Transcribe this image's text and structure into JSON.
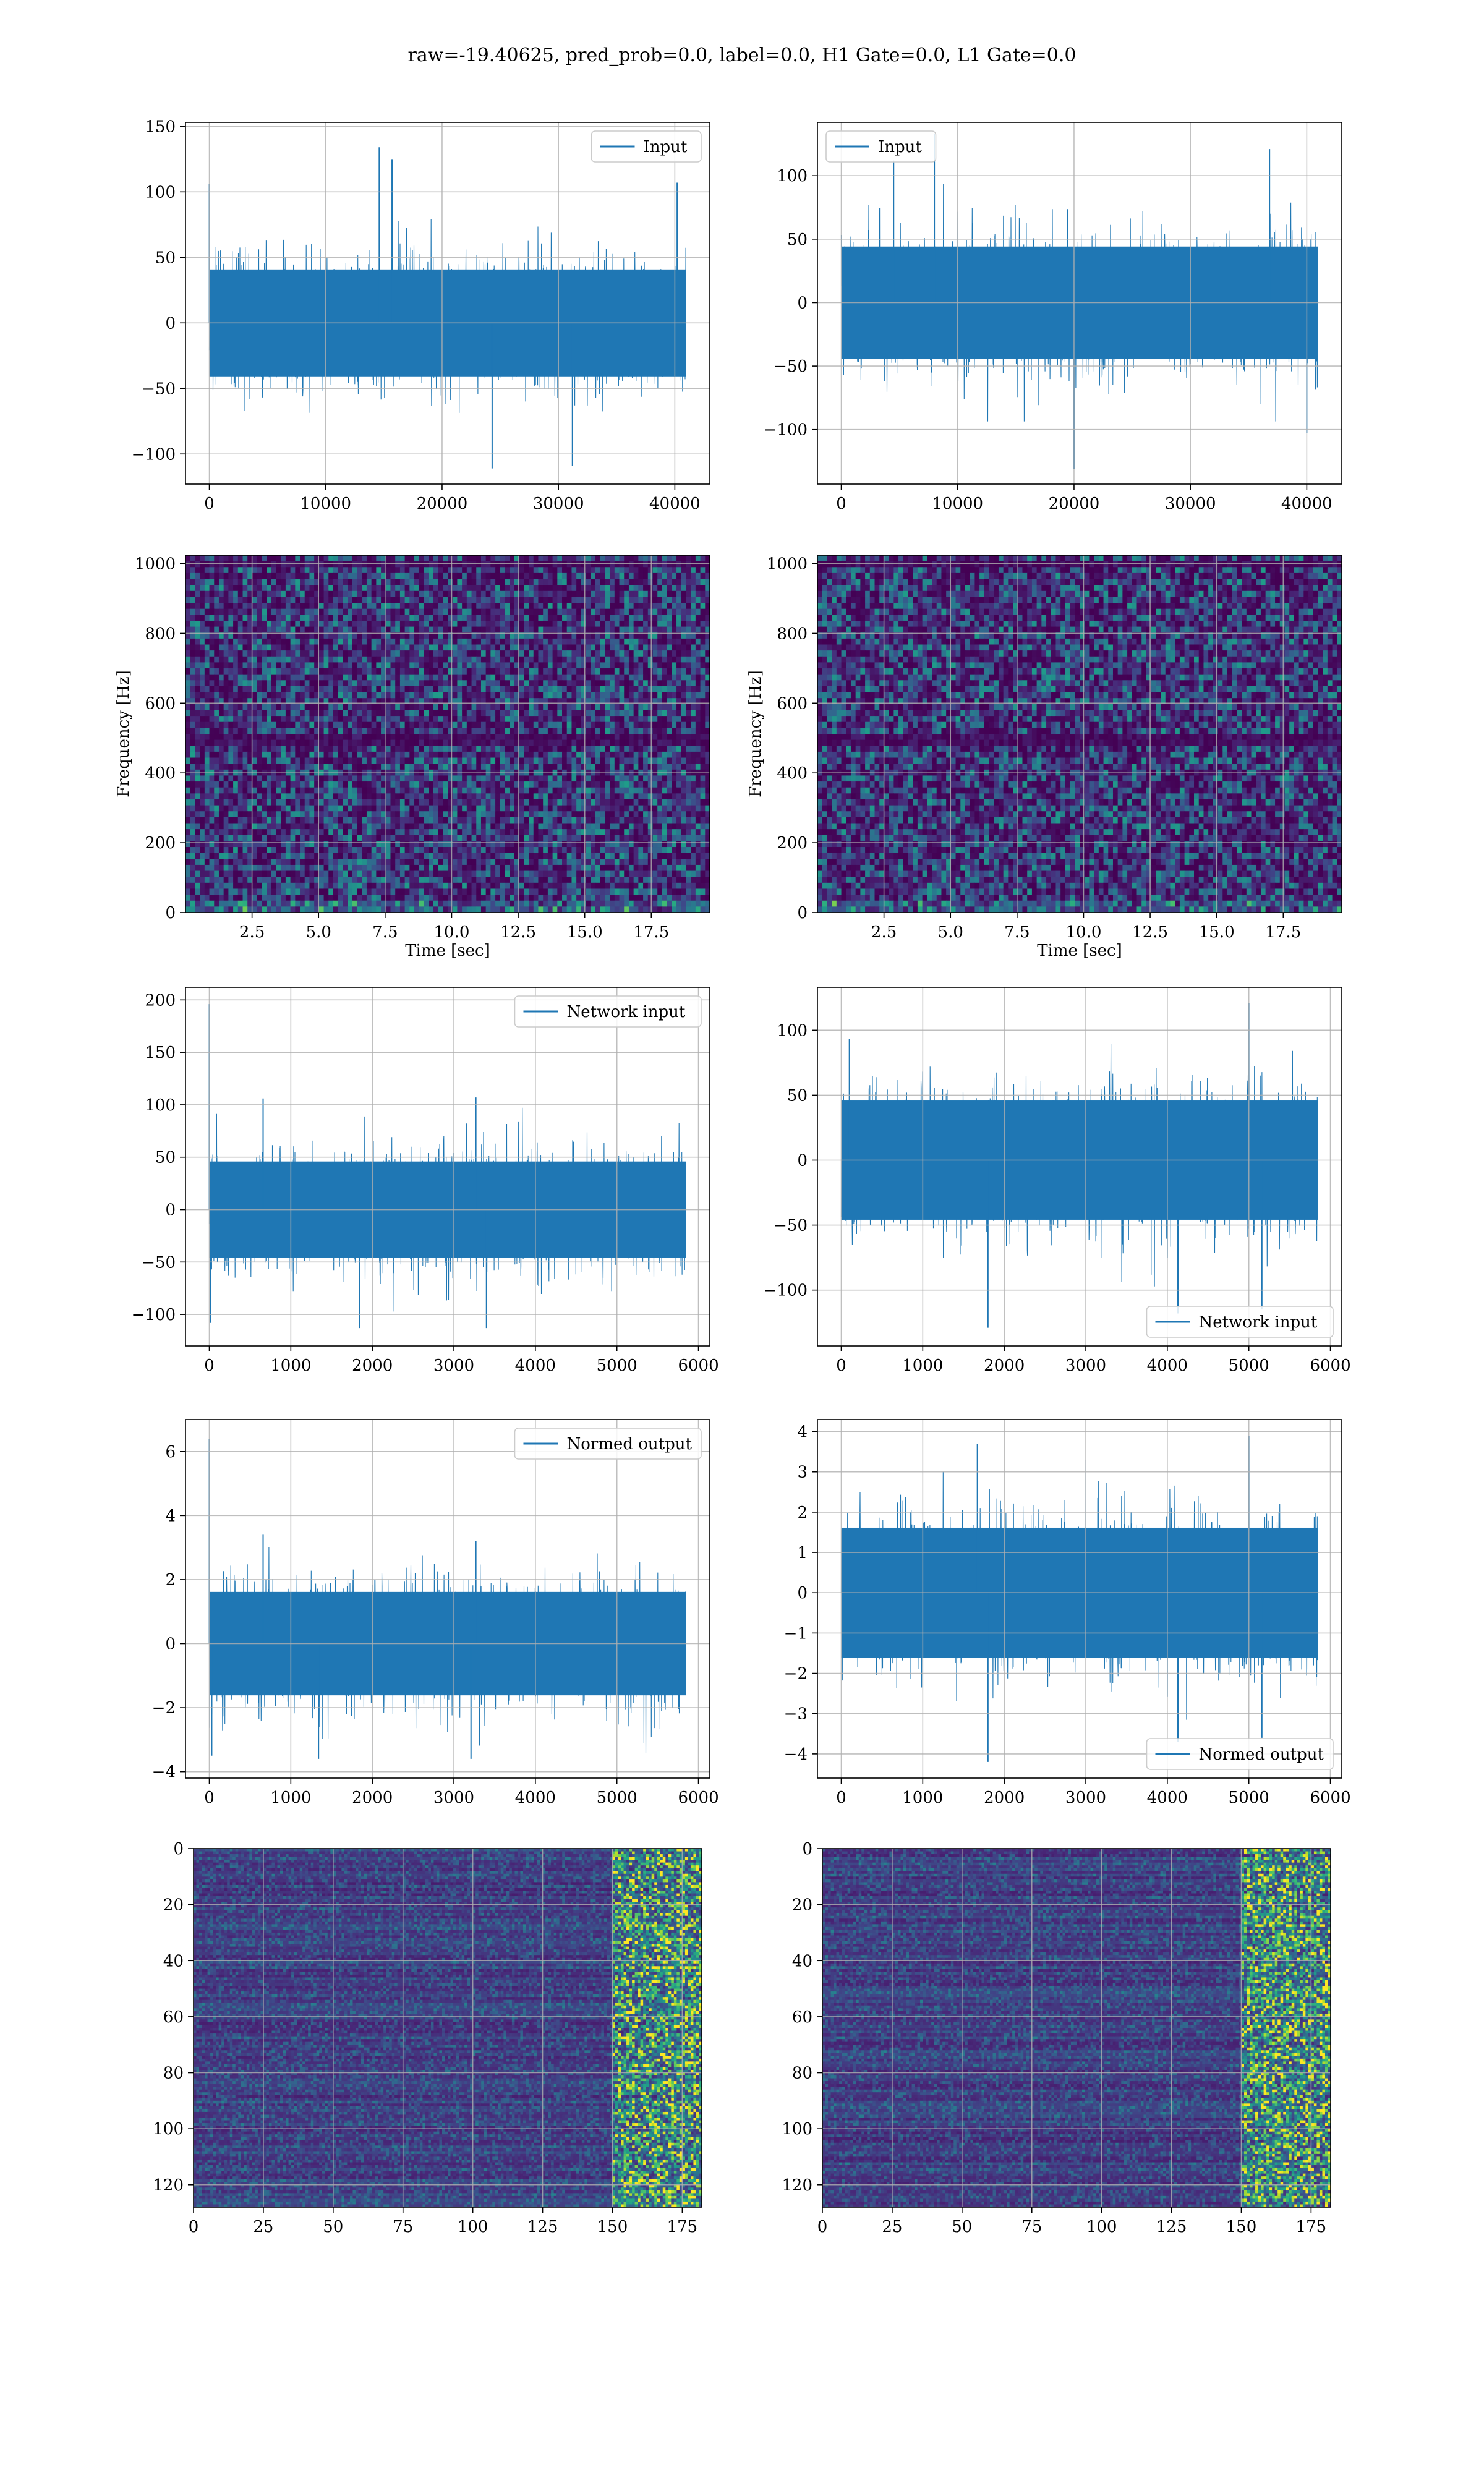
{
  "figure": {
    "suptitle": "raw=-19.40625, pred_prob=0.0, label=0.0, H1 Gate=0.0, L1 Gate=0.0",
    "colors": {
      "line": "#1f77b4",
      "grid": "#b0b0b0",
      "axes": "#000000"
    },
    "colormap": "viridis"
  },
  "chart_data": [
    {
      "id": "r1c1",
      "type": "line",
      "title": "",
      "xlabel": "",
      "ylabel": "",
      "series": [
        {
          "name": "Input",
          "n_points": 40960,
          "mean": 0,
          "std": 24,
          "peak_values": [
            {
              "x": 14600,
              "y": 134
            },
            {
              "x": 15700,
              "y": 125
            },
            {
              "x": 0,
              "y": 106
            },
            {
              "x": 24300,
              "y": -111
            },
            {
              "x": 31200,
              "y": -109
            },
            {
              "x": 40200,
              "y": 107
            }
          ]
        }
      ],
      "xlim": [
        -2048,
        43008
      ],
      "ylim": [
        -123,
        153
      ],
      "xticks": [
        0,
        10000,
        20000,
        30000,
        40000
      ],
      "yticks": [
        -100,
        -50,
        0,
        50,
        100,
        150
      ],
      "legend": {
        "position": "top-right",
        "entries": [
          "Input"
        ]
      },
      "grid": true
    },
    {
      "id": "r1c2",
      "type": "line",
      "title": "",
      "xlabel": "",
      "ylabel": "",
      "series": [
        {
          "name": "Input",
          "n_points": 40960,
          "mean": 0,
          "std": 26,
          "peak_values": [
            {
              "x": 20000,
              "y": -131
            },
            {
              "x": 8000,
              "y": 133
            },
            {
              "x": 4500,
              "y": 112
            },
            {
              "x": 36800,
              "y": 121
            },
            {
              "x": 40000,
              "y": -103
            }
          ]
        }
      ],
      "xlim": [
        -2048,
        43008
      ],
      "ylim": [
        -143,
        142
      ],
      "xticks": [
        0,
        10000,
        20000,
        30000,
        40000
      ],
      "yticks": [
        -100,
        -50,
        0,
        50,
        100
      ],
      "legend": {
        "position": "top-left",
        "entries": [
          "Input"
        ]
      },
      "grid": true
    },
    {
      "id": "r2c1",
      "type": "heatmap",
      "title": "",
      "xlabel": "Time [sec]",
      "ylabel": "Frequency [Hz]",
      "xlim": [
        0,
        19.7
      ],
      "ylim": [
        0,
        1024
      ],
      "xticks": [
        2.5,
        5.0,
        7.5,
        10.0,
        12.5,
        15.0,
        17.5
      ],
      "yticks": [
        0,
        200,
        400,
        600,
        800,
        1000
      ],
      "colormap": "viridis",
      "dark_bands_hz": [
        500,
        1000
      ],
      "grid": true
    },
    {
      "id": "r2c2",
      "type": "heatmap",
      "title": "",
      "xlabel": "Time [sec]",
      "ylabel": "Frequency [Hz]",
      "xlim": [
        0,
        19.7
      ],
      "ylim": [
        0,
        1024
      ],
      "xticks": [
        2.5,
        5.0,
        7.5,
        10.0,
        12.5,
        15.0,
        17.5
      ],
      "yticks": [
        0,
        200,
        400,
        600,
        800,
        1000
      ],
      "colormap": "viridis",
      "dark_bands_hz": [
        500,
        1000
      ],
      "grid": true
    },
    {
      "id": "r3c1",
      "type": "line",
      "title": "",
      "xlabel": "",
      "ylabel": "",
      "series": [
        {
          "name": "Network input",
          "n_points": 5848,
          "mean": 0,
          "std": 27,
          "peak_values": [
            {
              "x": 0,
              "y": 196
            },
            {
              "x": 15,
              "y": -108
            },
            {
              "x": 660,
              "y": 106
            },
            {
              "x": 3270,
              "y": 107
            },
            {
              "x": 3400,
              "y": -113
            },
            {
              "x": 1840,
              "y": -113
            }
          ]
        }
      ],
      "xlim": [
        -292,
        6140
      ],
      "ylim": [
        -130,
        212
      ],
      "xticks": [
        0,
        1000,
        2000,
        3000,
        4000,
        5000,
        6000
      ],
      "yticks": [
        -100,
        -50,
        0,
        50,
        100,
        150,
        200
      ],
      "legend": {
        "position": "top-right",
        "entries": [
          "Network input"
        ]
      },
      "grid": true
    },
    {
      "id": "r3c2",
      "type": "line",
      "title": "",
      "xlabel": "",
      "ylabel": "",
      "series": [
        {
          "name": "Network input",
          "n_points": 5848,
          "mean": 0,
          "std": 27,
          "peak_values": [
            {
              "x": 5000,
              "y": 121
            },
            {
              "x": 1800,
              "y": -129
            },
            {
              "x": 4130,
              "y": -118
            },
            {
              "x": 5160,
              "y": -115
            },
            {
              "x": 100,
              "y": 93
            }
          ]
        }
      ],
      "xlim": [
        -292,
        6140
      ],
      "ylim": [
        -143,
        133
      ],
      "xticks": [
        0,
        1000,
        2000,
        3000,
        4000,
        5000,
        6000
      ],
      "yticks": [
        -100,
        -50,
        0,
        50,
        100
      ],
      "legend": {
        "position": "bottom-right",
        "entries": [
          "Network input"
        ]
      },
      "grid": true
    },
    {
      "id": "r4c1",
      "type": "line",
      "title": "",
      "xlabel": "",
      "ylabel": "",
      "series": [
        {
          "name": "Normed output",
          "n_points": 5848,
          "mean": 0,
          "std": 0.95,
          "peak_values": [
            {
              "x": 0,
              "y": 6.4
            },
            {
              "x": 30,
              "y": -3.5
            },
            {
              "x": 660,
              "y": 3.4
            },
            {
              "x": 1340,
              "y": -3.6
            },
            {
              "x": 3270,
              "y": 3.2
            },
            {
              "x": 3210,
              "y": -3.6
            }
          ]
        }
      ],
      "xlim": [
        -292,
        6140
      ],
      "ylim": [
        -4.2,
        7.0
      ],
      "xticks": [
        0,
        1000,
        2000,
        3000,
        4000,
        5000,
        6000
      ],
      "yticks": [
        -4,
        -2,
        0,
        2,
        4,
        6
      ],
      "legend": {
        "position": "top-right",
        "entries": [
          "Normed output"
        ]
      },
      "grid": true
    },
    {
      "id": "r4c2",
      "type": "line",
      "title": "",
      "xlabel": "",
      "ylabel": "",
      "series": [
        {
          "name": "Normed output",
          "n_points": 5848,
          "mean": 0,
          "std": 0.95,
          "peak_values": [
            {
              "x": 1800,
              "y": -4.2
            },
            {
              "x": 1670,
              "y": 3.7
            },
            {
              "x": 5000,
              "y": 3.9
            },
            {
              "x": 4130,
              "y": -3.7
            },
            {
              "x": 5160,
              "y": -3.6
            }
          ]
        }
      ],
      "xlim": [
        -292,
        6140
      ],
      "ylim": [
        -4.6,
        4.3
      ],
      "xticks": [
        0,
        1000,
        2000,
        3000,
        4000,
        5000,
        6000
      ],
      "yticks": [
        -4,
        -3,
        -2,
        -1,
        0,
        1,
        2,
        3,
        4
      ],
      "legend": {
        "position": "bottom-right",
        "entries": [
          "Normed output"
        ]
      },
      "grid": true
    },
    {
      "id": "r5c1",
      "type": "heatmap",
      "title": "",
      "xlabel": "",
      "ylabel": "",
      "shape": [
        128,
        182
      ],
      "xlim": [
        0,
        182
      ],
      "ylim": [
        128,
        0
      ],
      "xticks": [
        0,
        25,
        50,
        75,
        100,
        125,
        150,
        175
      ],
      "yticks": [
        0,
        20,
        40,
        60,
        80,
        100,
        120
      ],
      "colormap": "viridis",
      "bright_columns_from": 150,
      "grid": true
    },
    {
      "id": "r5c2",
      "type": "heatmap",
      "title": "",
      "xlabel": "",
      "ylabel": "",
      "shape": [
        128,
        182
      ],
      "xlim": [
        0,
        182
      ],
      "ylim": [
        128,
        0
      ],
      "xticks": [
        0,
        25,
        50,
        75,
        100,
        125,
        150,
        175
      ],
      "yticks": [
        0,
        20,
        40,
        60,
        80,
        100,
        120
      ],
      "colormap": "viridis",
      "bright_columns_from": 150,
      "grid": true
    }
  ]
}
